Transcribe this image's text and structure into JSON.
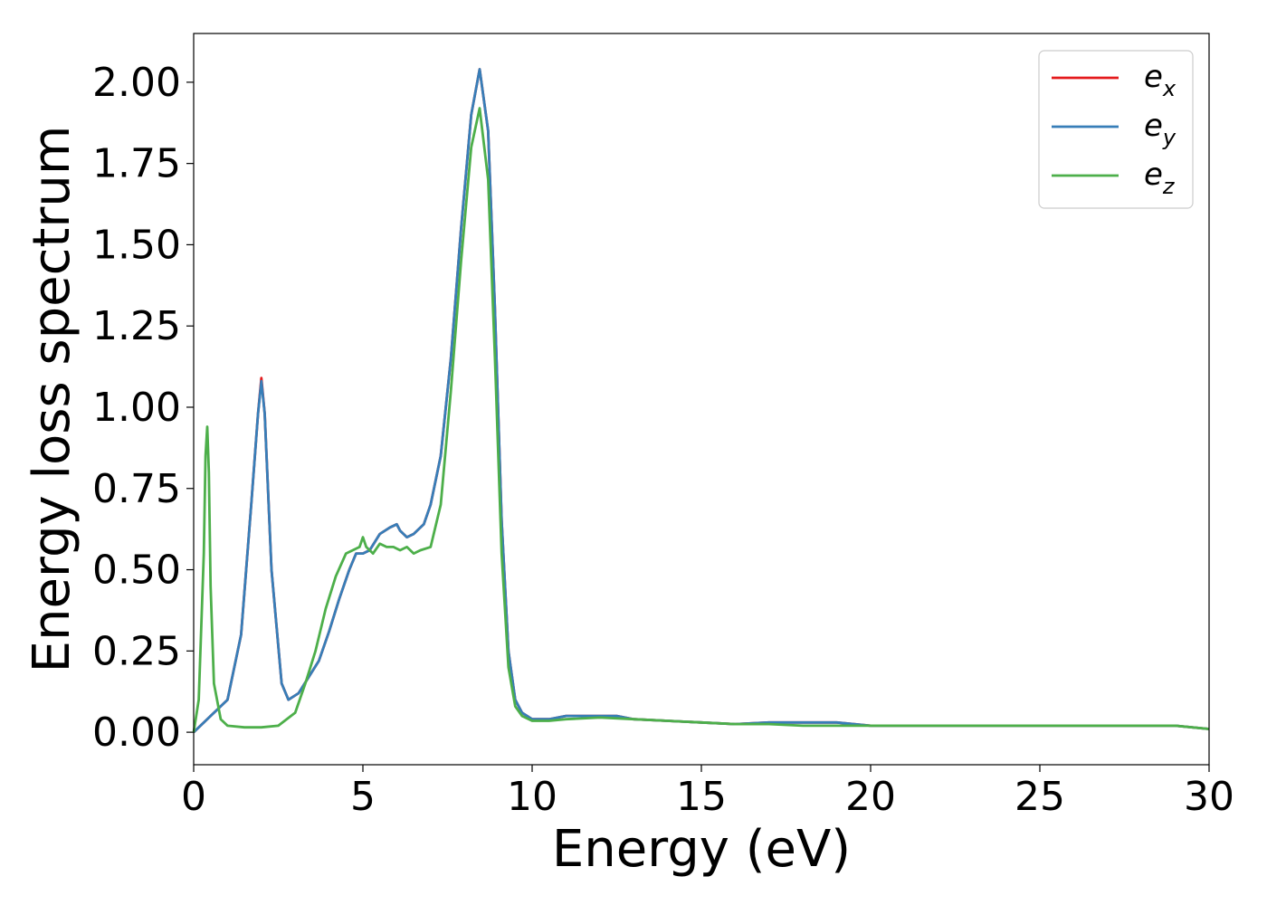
{
  "chart_data": {
    "type": "line",
    "title": "",
    "xlabel": "Energy (eV)",
    "ylabel": "Energy loss spectrum",
    "xlim": [
      0,
      30
    ],
    "ylim": [
      -0.1,
      2.15
    ],
    "xticks": [
      0,
      5,
      10,
      15,
      20,
      25,
      30
    ],
    "xtick_labels": [
      "0",
      "5",
      "10",
      "15",
      "20",
      "25",
      "30"
    ],
    "yticks": [
      0.0,
      0.25,
      0.5,
      0.75,
      1.0,
      1.25,
      1.5,
      1.75,
      2.0
    ],
    "ytick_labels": [
      "0.00",
      "0.25",
      "0.50",
      "0.75",
      "1.00",
      "1.25",
      "1.50",
      "1.75",
      "2.00"
    ],
    "grid": false,
    "legend_position": "top-right",
    "series": [
      {
        "name": "e_x",
        "legend_main": "e",
        "legend_sub": "x",
        "color": "#e41a1c",
        "x": [
          0,
          0.5,
          1.0,
          1.4,
          1.7,
          1.9,
          2.0,
          2.1,
          2.3,
          2.6,
          2.8,
          3.1,
          3.4,
          3.7,
          4.0,
          4.3,
          4.6,
          4.8,
          5.0,
          5.2,
          5.5,
          5.8,
          6.0,
          6.1,
          6.3,
          6.5,
          6.8,
          7.0,
          7.3,
          7.6,
          7.9,
          8.2,
          8.45,
          8.7,
          8.9,
          9.1,
          9.3,
          9.5,
          9.7,
          10.0,
          10.5,
          11.0,
          12.0,
          12.5,
          13.0,
          14.0,
          15.0,
          16.0,
          17.0,
          18.0,
          19.0,
          20.0,
          22.0,
          24.0,
          26.0,
          28.0,
          29.0,
          30.0
        ],
        "y": [
          0.0,
          0.05,
          0.1,
          0.3,
          0.7,
          0.98,
          1.09,
          0.98,
          0.5,
          0.15,
          0.1,
          0.12,
          0.17,
          0.22,
          0.31,
          0.41,
          0.5,
          0.55,
          0.55,
          0.56,
          0.61,
          0.63,
          0.64,
          0.62,
          0.6,
          0.61,
          0.64,
          0.7,
          0.85,
          1.15,
          1.55,
          1.9,
          2.04,
          1.85,
          1.3,
          0.65,
          0.25,
          0.1,
          0.06,
          0.04,
          0.04,
          0.05,
          0.05,
          0.05,
          0.04,
          0.035,
          0.03,
          0.025,
          0.03,
          0.03,
          0.03,
          0.02,
          0.02,
          0.02,
          0.02,
          0.02,
          0.02,
          0.01
        ]
      },
      {
        "name": "e_y",
        "legend_main": "e",
        "legend_sub": "y",
        "color": "#377eb8",
        "x": [
          0,
          0.5,
          1.0,
          1.4,
          1.7,
          1.9,
          2.0,
          2.1,
          2.3,
          2.6,
          2.8,
          3.1,
          3.4,
          3.7,
          4.0,
          4.3,
          4.6,
          4.8,
          5.0,
          5.2,
          5.5,
          5.8,
          6.0,
          6.1,
          6.3,
          6.5,
          6.8,
          7.0,
          7.3,
          7.6,
          7.9,
          8.2,
          8.45,
          8.7,
          8.9,
          9.1,
          9.3,
          9.5,
          9.7,
          10.0,
          10.5,
          11.0,
          12.0,
          12.5,
          13.0,
          14.0,
          15.0,
          16.0,
          17.0,
          18.0,
          19.0,
          20.0,
          22.0,
          24.0,
          26.0,
          28.0,
          29.0,
          30.0
        ],
        "y": [
          0.0,
          0.05,
          0.1,
          0.3,
          0.7,
          0.98,
          1.08,
          0.98,
          0.5,
          0.15,
          0.1,
          0.12,
          0.17,
          0.22,
          0.31,
          0.41,
          0.5,
          0.55,
          0.55,
          0.56,
          0.61,
          0.63,
          0.64,
          0.62,
          0.6,
          0.61,
          0.64,
          0.7,
          0.85,
          1.15,
          1.55,
          1.9,
          2.04,
          1.85,
          1.3,
          0.65,
          0.25,
          0.1,
          0.06,
          0.04,
          0.04,
          0.05,
          0.05,
          0.05,
          0.04,
          0.035,
          0.03,
          0.025,
          0.03,
          0.03,
          0.03,
          0.02,
          0.02,
          0.02,
          0.02,
          0.02,
          0.02,
          0.01
        ]
      },
      {
        "name": "e_z",
        "legend_main": "e",
        "legend_sub": "z",
        "color": "#4daf4a",
        "x": [
          0,
          0.15,
          0.3,
          0.35,
          0.4,
          0.45,
          0.5,
          0.6,
          0.8,
          1.0,
          1.5,
          2.0,
          2.5,
          3.0,
          3.3,
          3.6,
          3.9,
          4.2,
          4.5,
          4.7,
          4.9,
          5.0,
          5.1,
          5.3,
          5.5,
          5.7,
          5.9,
          6.1,
          6.3,
          6.5,
          6.7,
          7.0,
          7.3,
          7.6,
          7.9,
          8.2,
          8.45,
          8.7,
          8.9,
          9.1,
          9.3,
          9.5,
          9.7,
          10.0,
          10.5,
          11.0,
          12.0,
          13.0,
          14.0,
          15.0,
          16.0,
          17.0,
          18.0,
          19.0,
          20.0,
          22.0,
          24.0,
          26.0,
          28.0,
          29.0,
          30.0
        ],
        "y": [
          0.0,
          0.1,
          0.55,
          0.85,
          0.94,
          0.8,
          0.45,
          0.15,
          0.04,
          0.02,
          0.015,
          0.015,
          0.02,
          0.06,
          0.15,
          0.25,
          0.38,
          0.48,
          0.55,
          0.56,
          0.57,
          0.6,
          0.57,
          0.55,
          0.58,
          0.57,
          0.57,
          0.56,
          0.57,
          0.55,
          0.56,
          0.57,
          0.7,
          1.05,
          1.45,
          1.8,
          1.92,
          1.7,
          1.15,
          0.55,
          0.2,
          0.08,
          0.05,
          0.035,
          0.035,
          0.04,
          0.045,
          0.04,
          0.035,
          0.03,
          0.025,
          0.025,
          0.02,
          0.02,
          0.02,
          0.02,
          0.02,
          0.02,
          0.02,
          0.02,
          0.01
        ]
      }
    ]
  }
}
